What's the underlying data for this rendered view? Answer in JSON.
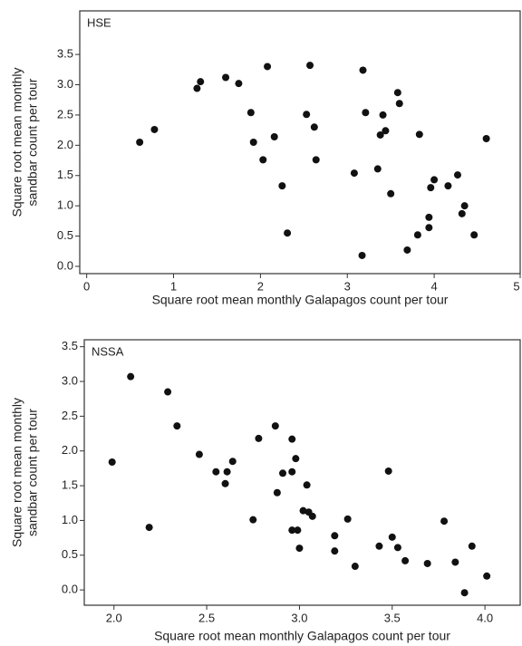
{
  "chart_data": [
    {
      "type": "scatter",
      "panel_label": "HSE",
      "xlabel": "Square root mean monthly Galapagos count per tour",
      "ylabel": [
        "Square root mean monthly",
        "sandbar count per tour"
      ],
      "color": "#111111",
      "xlim": [
        -0.08,
        4.99
      ],
      "ylim": [
        -0.12,
        4.22
      ],
      "xticks": [
        0,
        1,
        2,
        3,
        4,
        5
      ],
      "yticks": [
        {
          "value": 0,
          "label": "0.0"
        },
        {
          "value": 0.5,
          "label": "0.5"
        },
        {
          "value": 1,
          "label": "1.0"
        },
        {
          "value": 1.5,
          "label": "1.5"
        },
        {
          "value": 2,
          "label": "2.0"
        },
        {
          "value": 2.5,
          "label": "2.5"
        },
        {
          "value": 3,
          "label": "3.0"
        },
        {
          "value": 3.5,
          "label": "3.5"
        }
      ],
      "x": [
        0.61,
        0.78,
        1.27,
        1.31,
        1.6,
        1.75,
        1.89,
        1.92,
        2.08,
        2.03,
        2.16,
        2.25,
        2.31,
        2.53,
        2.57,
        2.62,
        2.64,
        3.08,
        3.18,
        3.21,
        3.17,
        3.35,
        3.38,
        3.41,
        3.44,
        3.5,
        3.58,
        3.6,
        3.83,
        3.69,
        3.81,
        3.94,
        3.94,
        3.96,
        4.0,
        4.16,
        4.27,
        4.32,
        4.35,
        4.46,
        4.6
      ],
      "values": [
        2.05,
        2.26,
        2.94,
        3.05,
        3.12,
        3.02,
        2.54,
        2.05,
        3.3,
        1.76,
        2.14,
        1.33,
        0.55,
        2.51,
        3.32,
        2.3,
        1.76,
        1.54,
        3.24,
        2.54,
        0.18,
        1.61,
        2.17,
        2.5,
        2.24,
        1.2,
        2.87,
        2.69,
        2.18,
        0.27,
        0.52,
        0.81,
        0.64,
        1.3,
        1.43,
        1.33,
        1.51,
        0.87,
        1.0,
        0.52,
        2.11
      ]
    },
    {
      "type": "scatter",
      "panel_label": "NSSA",
      "xlabel": "Square root mean monthly Galapagos count per tour",
      "ylabel": [
        "Square root mean monthly",
        "sandbar count per tour"
      ],
      "color": "#111111",
      "xlim": [
        1.84,
        4.19
      ],
      "ylim": [
        -0.22,
        3.6
      ],
      "xticks": [
        {
          "value": 2,
          "label": "2.0"
        },
        {
          "value": 2.5,
          "label": "2.5"
        },
        {
          "value": 3,
          "label": "3.0"
        },
        {
          "value": 3.5,
          "label": "3.5"
        },
        {
          "value": 4,
          "label": "4.0"
        }
      ],
      "yticks": [
        {
          "value": 0,
          "label": "0.0"
        },
        {
          "value": 0.5,
          "label": "0.5"
        },
        {
          "value": 1,
          "label": "1.0"
        },
        {
          "value": 1.5,
          "label": "1.5"
        },
        {
          "value": 2,
          "label": "2.0"
        },
        {
          "value": 2.5,
          "label": "2.5"
        },
        {
          "value": 3,
          "label": "3.0"
        },
        {
          "value": 3.5,
          "label": "3.5"
        }
      ],
      "x": [
        1.99,
        2.09,
        2.19,
        2.29,
        2.34,
        2.46,
        2.55,
        2.6,
        2.61,
        2.64,
        2.75,
        2.78,
        2.87,
        2.88,
        2.91,
        2.96,
        2.96,
        2.98,
        2.96,
        2.99,
        3.0,
        3.02,
        3.04,
        3.05,
        3.07,
        3.19,
        3.19,
        3.26,
        3.3,
        3.43,
        3.48,
        3.5,
        3.53,
        3.57,
        3.69,
        3.78,
        3.84,
        3.89,
        3.93,
        4.01
      ],
      "values": [
        1.84,
        3.07,
        0.9,
        2.85,
        2.36,
        1.95,
        1.7,
        1.53,
        1.7,
        1.85,
        1.01,
        2.18,
        2.36,
        1.4,
        1.68,
        2.17,
        1.7,
        1.89,
        0.86,
        0.86,
        0.6,
        1.14,
        1.51,
        1.12,
        1.06,
        0.78,
        0.56,
        1.02,
        0.34,
        0.63,
        1.71,
        0.76,
        0.61,
        0.42,
        0.38,
        0.99,
        0.4,
        -0.04,
        0.63,
        0.2
      ]
    }
  ]
}
